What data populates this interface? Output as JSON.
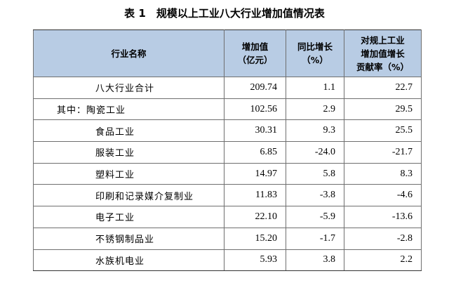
{
  "title": "表 1　规模以上工业八大行业增加值情况表",
  "table": {
    "header": [
      [
        "行业名称"
      ],
      [
        "增加值",
        "（亿元）"
      ],
      [
        "同比增长",
        "（%）"
      ],
      [
        "对规上工业",
        "增加值增长",
        "贡献率（%）"
      ]
    ],
    "rows": [
      [
        "八大行业合计",
        "209.74",
        "1.1",
        "22.7"
      ],
      [
        "其中：陶瓷工业",
        "102.56",
        "2.9",
        "29.5"
      ],
      [
        "食品工业",
        "30.31",
        "9.3",
        "25.5"
      ],
      [
        "服装工业",
        "6.85",
        "-24.0",
        "-21.7"
      ],
      [
        "塑料工业",
        "14.97",
        "5.8",
        "8.3"
      ],
      [
        "印刷和记录媒介复制业",
        "11.83",
        "-3.8",
        "-4.6"
      ],
      [
        "电子工业",
        "22.10",
        "-5.9",
        "-13.6"
      ],
      [
        "不锈钢制品业",
        "15.20",
        "-1.7",
        "-2.8"
      ],
      [
        "水族机电业",
        "5.93",
        "3.8",
        "2.2"
      ]
    ]
  }
}
